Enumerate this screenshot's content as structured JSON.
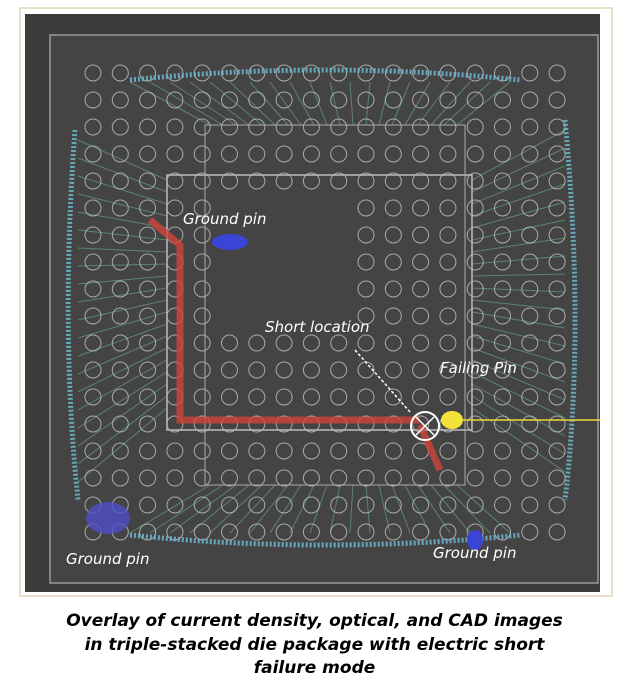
{
  "labels": {
    "ground_pin_top": "Ground pin",
    "short_location": "Short location",
    "failing_pin": "Failing Pin",
    "ground_pin_left": "Ground pin",
    "ground_pin_right": "Ground pin"
  },
  "caption": [
    "Overlay of current density, optical, and CAD images",
    "in  triple-stacked die package with electric short",
    "failure mode"
  ]
}
